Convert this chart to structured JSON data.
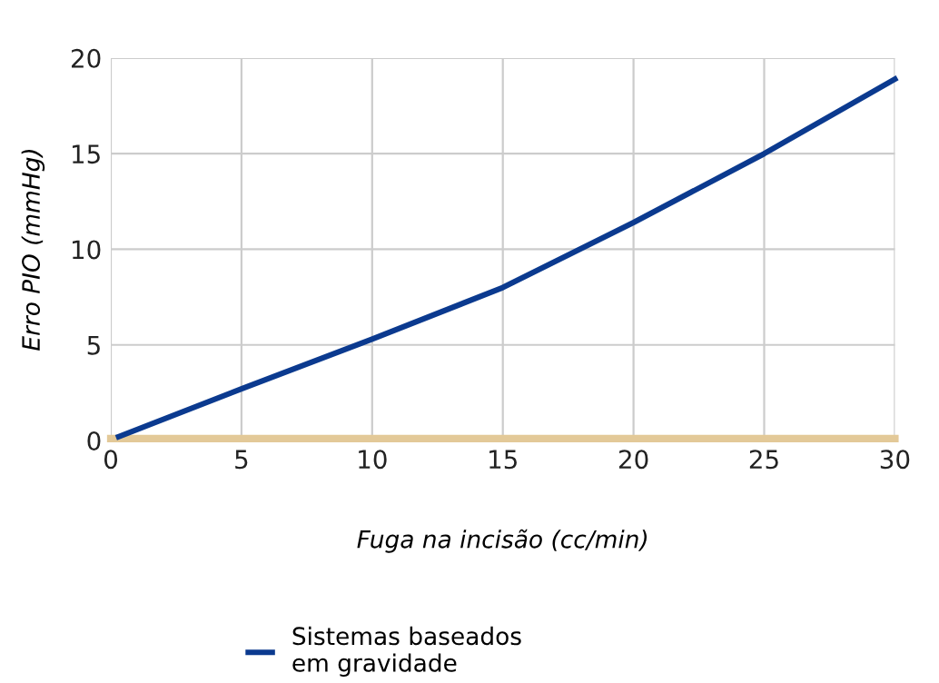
{
  "chart_data": {
    "type": "line",
    "xlabel": "Fuga na incisão (cc/min)",
    "ylabel": "Erro PIO (mmHg)",
    "xlim": [
      0,
      30
    ],
    "ylim": [
      0,
      20
    ],
    "xticks": [
      0,
      5,
      10,
      15,
      20,
      25,
      30
    ],
    "yticks": [
      0,
      5,
      10,
      15,
      20
    ],
    "grid": true,
    "legend": "bottom",
    "line_style": "solid",
    "series": [
      {
        "name": "Sistemas baseados\nem gravidade",
        "color": "#0b3a8f",
        "x": [
          0.3,
          5,
          10,
          15,
          20,
          25,
          30
        ],
        "values": [
          0.2,
          2.7,
          5.3,
          8.0,
          11.4,
          15.0,
          18.9
        ]
      },
      {
        "color": "#e3c998",
        "x": [
          0,
          30
        ],
        "values": [
          0.1,
          0.1
        ]
      }
    ]
  }
}
